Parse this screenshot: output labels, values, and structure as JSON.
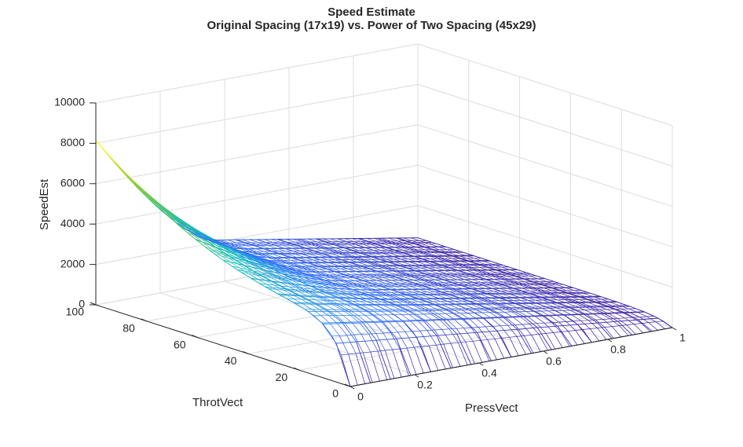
{
  "chart_data": {
    "type": "surface-mesh-3d",
    "title": "Speed Estimate",
    "subtitle": "Original Spacing (17x19) vs. Power of Two Spacing (45x29)",
    "xlabel": "PressVect",
    "ylabel": "ThrotVect",
    "zlabel": "SpeedEst",
    "xlim": [
      0,
      1
    ],
    "ylim": [
      0,
      100
    ],
    "zlim": [
      0,
      10000
    ],
    "x_ticks": [
      0,
      0.2,
      0.4,
      0.6,
      0.8,
      1
    ],
    "x_tick_labels": [
      "0",
      "0.2",
      "0.4",
      "0.6",
      "0.8",
      "1"
    ],
    "y_ticks": [
      0,
      20,
      40,
      60,
      80,
      100
    ],
    "y_tick_labels": [
      "0",
      "20",
      "40",
      "60",
      "80",
      "100"
    ],
    "z_ticks": [
      0,
      2000,
      4000,
      6000,
      8000,
      10000
    ],
    "z_tick_labels": [
      "0",
      "2000",
      "4000",
      "6000",
      "8000",
      "10000"
    ],
    "grid": true,
    "colormap": "parula",
    "series": [
      {
        "name": "Original Spacing",
        "grid_size": [
          17,
          19
        ]
      },
      {
        "name": "Power of Two Spacing",
        "grid_size": [
          45,
          29
        ]
      }
    ],
    "colors": {
      "axis": "#262626",
      "grid": "#dcdcdc",
      "mesh_low": "#3e26a8",
      "mesh_high": "#f9fb0e"
    }
  }
}
